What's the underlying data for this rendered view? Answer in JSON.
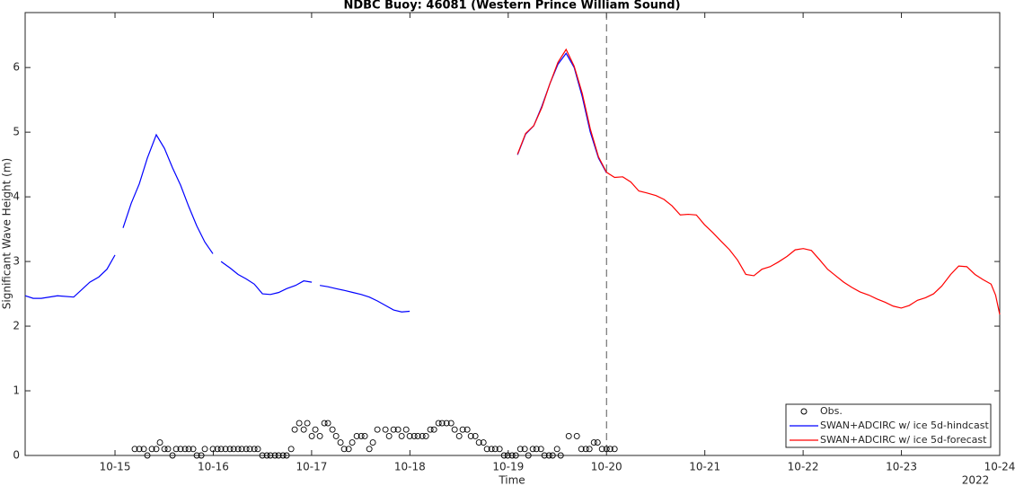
{
  "chart_data": {
    "type": "line",
    "title": "NDBC Buoy: 46081 (Western Prince William Sound)",
    "x_label": "Time",
    "y_label": "Significant Wave Height (m)",
    "x_annotation": "2022",
    "vline": 20,
    "legend": "lower right",
    "xlim": [
      14.086,
      24.0
    ],
    "ylim": [
      0,
      6.85
    ],
    "xticks": [
      {
        "value": 15,
        "label": "10-15"
      },
      {
        "value": 16,
        "label": "10-16"
      },
      {
        "value": 17,
        "label": "10-17"
      },
      {
        "value": 18,
        "label": "10-18"
      },
      {
        "value": 19,
        "label": "10-19"
      },
      {
        "value": 20,
        "label": "10-20"
      },
      {
        "value": 21,
        "label": "10-21"
      },
      {
        "value": 22,
        "label": "10-22"
      },
      {
        "value": 23,
        "label": "10-23"
      },
      {
        "value": 24,
        "label": "10-24"
      }
    ],
    "yticks": [
      0,
      1,
      2,
      3,
      4,
      5,
      6
    ],
    "series": [
      {
        "name": "Obs.",
        "color": "#000000",
        "mode": "markers",
        "x": [
          15.201,
          15.247,
          15.293,
          15.329,
          15.375,
          15.42,
          15.457,
          15.503,
          15.539,
          15.585,
          15.622,
          15.667,
          15.713,
          15.75,
          15.795,
          15.832,
          15.878,
          15.914,
          15.996,
          16.042,
          16.079,
          16.124,
          16.17,
          16.207,
          16.252,
          16.289,
          16.335,
          16.371,
          16.417,
          16.453,
          16.499,
          16.545,
          16.581,
          16.627,
          16.664,
          16.709,
          16.746,
          16.792,
          16.828,
          16.874,
          16.92,
          16.956,
          17.002,
          17.038,
          17.084,
          17.13,
          17.166,
          17.212,
          17.249,
          17.294,
          17.331,
          17.377,
          17.413,
          17.459,
          17.505,
          17.541,
          17.587,
          17.623,
          17.669,
          17.751,
          17.788,
          17.834,
          17.879,
          17.916,
          17.962,
          17.998,
          18.044,
          18.08,
          18.126,
          18.163,
          18.208,
          18.245,
          18.291,
          18.327,
          18.373,
          18.419,
          18.455,
          18.501,
          18.537,
          18.583,
          18.62,
          18.665,
          18.702,
          18.748,
          18.784,
          18.83,
          18.867,
          18.912,
          18.958,
          18.995,
          19.04,
          19.077,
          19.123,
          19.168,
          19.205,
          19.25,
          19.287,
          19.333,
          19.369,
          19.415,
          19.452,
          19.497,
          19.534,
          19.616,
          19.698,
          19.744,
          19.79,
          19.826,
          19.872,
          19.909,
          19.954,
          20.0,
          20.037,
          20.082
        ],
        "values": [
          0.1,
          0.1,
          0.1,
          0,
          0.1,
          0.1,
          0.2,
          0.1,
          0.1,
          0,
          0.1,
          0.1,
          0.1,
          0.1,
          0.1,
          0,
          0,
          0.1,
          0.1,
          0.1,
          0.1,
          0.1,
          0.1,
          0.1,
          0.1,
          0.1,
          0.1,
          0.1,
          0.1,
          0.1,
          0,
          0,
          0,
          0,
          0,
          0,
          0,
          0.1,
          0.4,
          0.5,
          0.4,
          0.5,
          0.3,
          0.4,
          0.3,
          0.5,
          0.5,
          0.4,
          0.3,
          0.2,
          0.1,
          0.1,
          0.2,
          0.3,
          0.3,
          0.3,
          0.1,
          0.2,
          0.4,
          0.4,
          0.3,
          0.4,
          0.4,
          0.3,
          0.4,
          0.3,
          0.3,
          0.3,
          0.3,
          0.3,
          0.4,
          0.4,
          0.5,
          0.5,
          0.5,
          0.5,
          0.4,
          0.3,
          0.4,
          0.4,
          0.3,
          0.3,
          0.2,
          0.2,
          0.1,
          0.1,
          0.1,
          0.1,
          0,
          0,
          0,
          0,
          0.1,
          0.1,
          0,
          0.1,
          0.1,
          0.1,
          0,
          0,
          0,
          0.1,
          0,
          0.3,
          0.3,
          0.1,
          0.1,
          0.1,
          0.2,
          0.2,
          0.1,
          0.1,
          0.1,
          0.1
        ]
      },
      {
        "name": "SWAN+ADCIRC w/ ice 5d-hindcast",
        "color": "#0000ff",
        "mode": "lines",
        "x": [
          14.086,
          14.168,
          14.25,
          14.415,
          14.58,
          14.744,
          14.835,
          14.918,
          15.0,
          15.04,
          15.082,
          15.165,
          15.247,
          15.329,
          15.42,
          15.503,
          15.585,
          15.667,
          15.75,
          15.832,
          15.914,
          15.996,
          16.04,
          16.079,
          16.17,
          16.252,
          16.335,
          16.417,
          16.5,
          16.581,
          16.664,
          16.746,
          16.837,
          16.92,
          17.002,
          17.04,
          17.084,
          17.166,
          17.249,
          17.34,
          17.422,
          17.505,
          17.587,
          17.669,
          17.751,
          17.834,
          17.916,
          17.998,
          18.5,
          19.095,
          19.177,
          19.26,
          19.342,
          19.424,
          19.506,
          19.589,
          19.671,
          19.753,
          19.835,
          19.918,
          20.0
        ],
        "values": [
          2.47,
          2.43,
          2.43,
          2.47,
          2.45,
          2.68,
          2.76,
          2.88,
          3.1,
          null,
          3.52,
          3.9,
          4.2,
          4.6,
          4.96,
          4.75,
          4.45,
          4.18,
          3.85,
          3.55,
          3.3,
          3.12,
          null,
          3.0,
          2.9,
          2.8,
          2.73,
          2.65,
          2.5,
          2.49,
          2.52,
          2.58,
          2.63,
          2.7,
          2.68,
          null,
          2.63,
          2.61,
          2.58,
          2.55,
          2.52,
          2.49,
          2.45,
          2.39,
          2.32,
          2.25,
          2.22,
          2.23,
          null,
          4.65,
          4.97,
          5.1,
          5.4,
          5.75,
          6.05,
          6.22,
          6.0,
          5.55,
          5.0,
          4.6,
          4.37
        ]
      },
      {
        "name": "SWAN+ADCIRC w/ ice 5d-forecast",
        "color": "#ff0000",
        "mode": "lines",
        "x": [
          19.095,
          19.177,
          19.26,
          19.342,
          19.424,
          19.506,
          19.589,
          19.671,
          19.753,
          19.835,
          19.918,
          20.0,
          20.082,
          20.165,
          20.247,
          20.329,
          20.411,
          20.503,
          20.585,
          20.667,
          20.75,
          20.832,
          20.914,
          20.996,
          21.079,
          21.161,
          21.252,
          21.334,
          21.417,
          21.499,
          21.581,
          21.664,
          21.746,
          21.837,
          21.919,
          22.002,
          22.084,
          22.166,
          22.249,
          22.331,
          22.413,
          22.495,
          22.578,
          22.669,
          22.751,
          22.834,
          22.916,
          22.998,
          23.08,
          23.163,
          23.245,
          23.327,
          23.41,
          23.501,
          23.583,
          23.665,
          23.748,
          23.83,
          23.912,
          23.958,
          24.0
        ],
        "values": [
          4.66,
          4.98,
          5.1,
          5.38,
          5.75,
          6.08,
          6.28,
          6.02,
          5.6,
          5.05,
          4.62,
          4.38,
          4.3,
          4.31,
          4.23,
          4.09,
          4.06,
          4.02,
          3.96,
          3.86,
          3.72,
          3.73,
          3.72,
          3.57,
          3.45,
          3.32,
          3.18,
          3.02,
          2.8,
          2.78,
          2.88,
          2.92,
          2.99,
          3.08,
          3.18,
          3.2,
          3.17,
          3.03,
          2.88,
          2.78,
          2.68,
          2.6,
          2.53,
          2.48,
          2.42,
          2.37,
          2.31,
          2.28,
          2.32,
          2.4,
          2.44,
          2.5,
          2.62,
          2.8,
          2.93,
          2.92,
          2.8,
          2.72,
          2.65,
          2.48,
          2.18
        ]
      }
    ]
  }
}
